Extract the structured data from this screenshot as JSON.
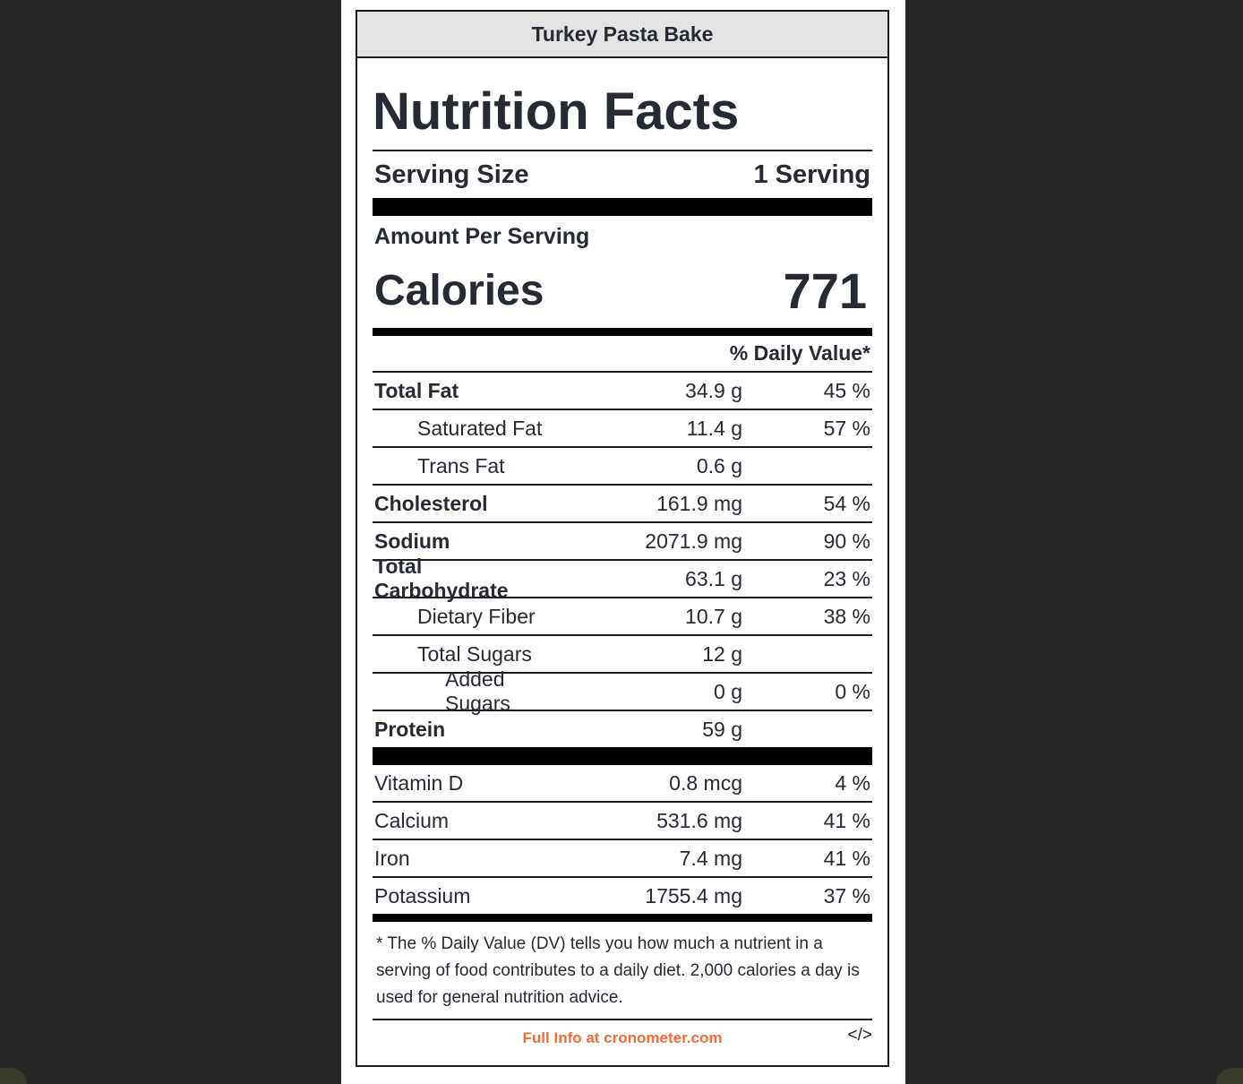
{
  "label": {
    "title": "Turkey Pasta Bake",
    "heading": "Nutrition Facts",
    "serving_size_label": "Serving Size",
    "serving_size_value": "1 Serving",
    "amount_per_serving": "Amount Per Serving",
    "calories_label": "Calories",
    "calories_value": "771",
    "daily_value_header": "% Daily Value*"
  },
  "nutrients": [
    {
      "name": "Total Fat",
      "amount": "34.9 g",
      "pct": "45 %"
    },
    {
      "name": "Saturated Fat",
      "amount": "11.4 g",
      "pct": "57 %"
    },
    {
      "name": "Trans Fat",
      "amount": "0.6 g",
      "pct": ""
    },
    {
      "name": "Cholesterol",
      "amount": "161.9 mg",
      "pct": "54 %"
    },
    {
      "name": "Sodium",
      "amount": "2071.9 mg",
      "pct": "90 %"
    },
    {
      "name": "Total Carbohydrate",
      "amount": "63.1 g",
      "pct": "23 %"
    },
    {
      "name": "Dietary Fiber",
      "amount": "10.7 g",
      "pct": "38 %"
    },
    {
      "name": "Total Sugars",
      "amount": "12 g",
      "pct": ""
    },
    {
      "name": "Added Sugars",
      "amount": "0 g",
      "pct": "0 %"
    },
    {
      "name": "Protein",
      "amount": "59 g",
      "pct": ""
    }
  ],
  "vitamins": [
    {
      "name": "Vitamin D",
      "amount": "0.8 mcg",
      "pct": "4 %"
    },
    {
      "name": "Calcium",
      "amount": "531.6 mg",
      "pct": "41 %"
    },
    {
      "name": "Iron",
      "amount": "7.4 mg",
      "pct": "41 %"
    },
    {
      "name": "Potassium",
      "amount": "1755.4 mg",
      "pct": "37 %"
    }
  ],
  "footnote": "* The % Daily Value (DV) tells you how much a nutrient in a serving of food contributes to a daily diet. 2,000 calories a day is used for general nutrition advice.",
  "footer": {
    "link_text": "Full Info at cronometer.com",
    "embed_icon": "</>"
  },
  "colors": {
    "link": "#f26b38",
    "background": "#262828",
    "title_bar": "#e3e3e3"
  }
}
